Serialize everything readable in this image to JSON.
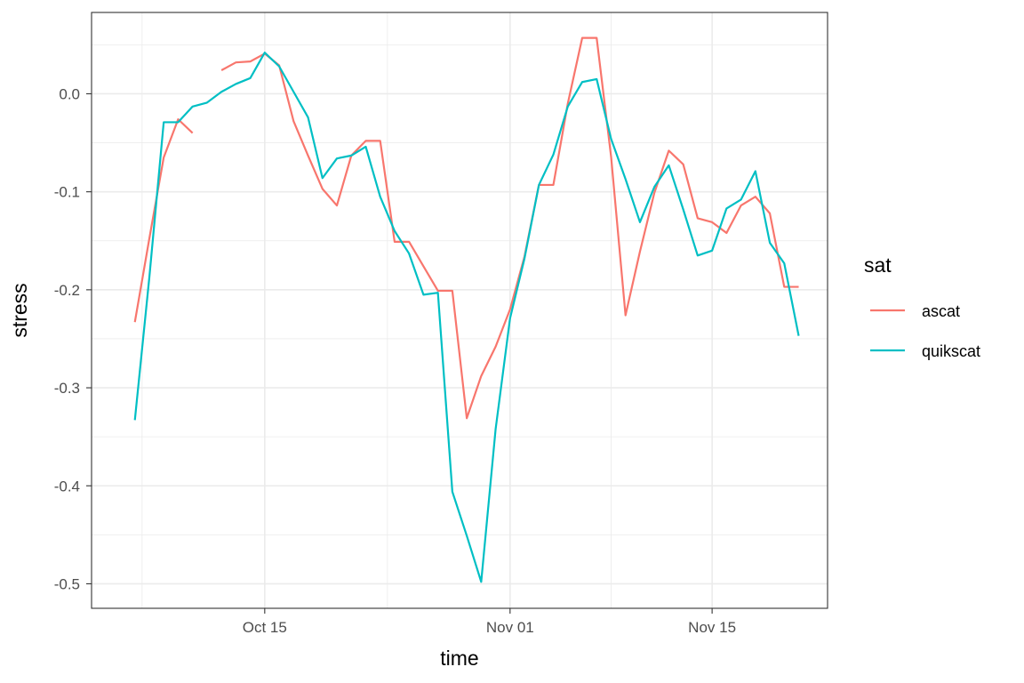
{
  "chart_data": {
    "type": "line",
    "xlabel": "time",
    "ylabel": "stress",
    "x_ticks": [
      {
        "date": "2023-10-15",
        "label": "Oct 15"
      },
      {
        "date": "2023-11-01",
        "label": "Nov 01"
      },
      {
        "date": "2023-11-15",
        "label": "Nov 15"
      }
    ],
    "y_ticks": [
      {
        "value": 0.0,
        "label": "0.0"
      },
      {
        "value": -0.1,
        "label": "-0.1"
      },
      {
        "value": -0.2,
        "label": "-0.2"
      },
      {
        "value": -0.3,
        "label": "-0.3"
      },
      {
        "value": -0.4,
        "label": "-0.4"
      },
      {
        "value": -0.5,
        "label": "-0.5"
      }
    ],
    "xlim": [
      "2023-10-03",
      "2023-11-23"
    ],
    "ylim": [
      -0.525,
      0.083
    ],
    "grid": true,
    "legend": {
      "title": "sat",
      "position": "right"
    },
    "series": [
      {
        "name": "ascat",
        "color": "#F8766D",
        "points": [
          {
            "date": "2023-10-06",
            "y": -0.233
          },
          {
            "date": "2023-10-07",
            "y": -0.148
          },
          {
            "date": "2023-10-08",
            "y": -0.065
          },
          {
            "date": "2023-10-09",
            "y": -0.026
          },
          {
            "date": "2023-10-10",
            "y": -0.04
          },
          {
            "date": "2023-10-11",
            "y": null
          },
          {
            "date": "2023-10-12",
            "y": 0.024
          },
          {
            "date": "2023-10-13",
            "y": 0.032
          },
          {
            "date": "2023-10-14",
            "y": 0.033
          },
          {
            "date": "2023-10-15",
            "y": 0.041
          },
          {
            "date": "2023-10-16",
            "y": 0.029
          },
          {
            "date": "2023-10-17",
            "y": -0.028
          },
          {
            "date": "2023-10-18",
            "y": -0.063
          },
          {
            "date": "2023-10-19",
            "y": -0.097
          },
          {
            "date": "2023-10-20",
            "y": -0.114
          },
          {
            "date": "2023-10-21",
            "y": -0.063
          },
          {
            "date": "2023-10-22",
            "y": -0.048
          },
          {
            "date": "2023-10-23",
            "y": -0.048
          },
          {
            "date": "2023-10-24",
            "y": -0.151
          },
          {
            "date": "2023-10-25",
            "y": -0.151
          },
          {
            "date": "2023-10-26",
            "y": -0.176
          },
          {
            "date": "2023-10-27",
            "y": -0.201
          },
          {
            "date": "2023-10-28",
            "y": -0.201
          },
          {
            "date": "2023-10-29",
            "y": -0.331
          },
          {
            "date": "2023-10-30",
            "y": -0.288
          },
          {
            "date": "2023-10-31",
            "y": -0.258
          },
          {
            "date": "2023-11-01",
            "y": -0.22
          },
          {
            "date": "2023-11-02",
            "y": -0.166
          },
          {
            "date": "2023-11-03",
            "y": -0.093
          },
          {
            "date": "2023-11-04",
            "y": -0.093
          },
          {
            "date": "2023-11-05",
            "y": -0.01
          },
          {
            "date": "2023-11-06",
            "y": 0.057
          },
          {
            "date": "2023-11-07",
            "y": 0.057
          },
          {
            "date": "2023-11-08",
            "y": -0.064
          },
          {
            "date": "2023-11-09",
            "y": -0.226
          },
          {
            "date": "2023-11-10",
            "y": -0.161
          },
          {
            "date": "2023-11-11",
            "y": -0.101
          },
          {
            "date": "2023-11-12",
            "y": -0.058
          },
          {
            "date": "2023-11-13",
            "y": -0.072
          },
          {
            "date": "2023-11-14",
            "y": -0.127
          },
          {
            "date": "2023-11-15",
            "y": -0.131
          },
          {
            "date": "2023-11-16",
            "y": -0.142
          },
          {
            "date": "2023-11-17",
            "y": -0.114
          },
          {
            "date": "2023-11-18",
            "y": -0.105
          },
          {
            "date": "2023-11-19",
            "y": -0.122
          },
          {
            "date": "2023-11-20",
            "y": -0.197
          },
          {
            "date": "2023-11-21",
            "y": -0.197
          }
        ]
      },
      {
        "name": "quikscat",
        "color": "#00BFC4",
        "points": [
          {
            "date": "2023-10-06",
            "y": -0.333
          },
          {
            "date": "2023-10-07",
            "y": -0.188
          },
          {
            "date": "2023-10-08",
            "y": -0.029
          },
          {
            "date": "2023-10-09",
            "y": -0.029
          },
          {
            "date": "2023-10-10",
            "y": -0.013
          },
          {
            "date": "2023-10-11",
            "y": -0.009
          },
          {
            "date": "2023-10-12",
            "y": 0.002
          },
          {
            "date": "2023-10-13",
            "y": 0.01
          },
          {
            "date": "2023-10-14",
            "y": 0.016
          },
          {
            "date": "2023-10-15",
            "y": 0.042
          },
          {
            "date": "2023-10-16",
            "y": 0.028
          },
          {
            "date": "2023-10-17",
            "y": 0.002
          },
          {
            "date": "2023-10-18",
            "y": -0.024
          },
          {
            "date": "2023-10-19",
            "y": -0.086
          },
          {
            "date": "2023-10-20",
            "y": -0.066
          },
          {
            "date": "2023-10-21",
            "y": -0.063
          },
          {
            "date": "2023-10-22",
            "y": -0.054
          },
          {
            "date": "2023-10-23",
            "y": -0.105
          },
          {
            "date": "2023-10-24",
            "y": -0.14
          },
          {
            "date": "2023-10-25",
            "y": -0.163
          },
          {
            "date": "2023-10-26",
            "y": -0.205
          },
          {
            "date": "2023-10-27",
            "y": -0.203
          },
          {
            "date": "2023-10-28",
            "y": -0.406
          },
          {
            "date": "2023-10-29",
            "y": -0.451
          },
          {
            "date": "2023-10-30",
            "y": -0.498
          },
          {
            "date": "2023-10-31",
            "y": -0.342
          },
          {
            "date": "2023-11-01",
            "y": -0.229
          },
          {
            "date": "2023-11-02",
            "y": -0.168
          },
          {
            "date": "2023-11-03",
            "y": -0.093
          },
          {
            "date": "2023-11-04",
            "y": -0.062
          },
          {
            "date": "2023-11-05",
            "y": -0.013
          },
          {
            "date": "2023-11-06",
            "y": 0.012
          },
          {
            "date": "2023-11-07",
            "y": 0.015
          },
          {
            "date": "2023-11-08",
            "y": -0.046
          },
          {
            "date": "2023-11-09",
            "y": -0.087
          },
          {
            "date": "2023-11-10",
            "y": -0.131
          },
          {
            "date": "2023-11-11",
            "y": -0.095
          },
          {
            "date": "2023-11-12",
            "y": -0.073
          },
          {
            "date": "2023-11-13",
            "y": -0.118
          },
          {
            "date": "2023-11-14",
            "y": -0.165
          },
          {
            "date": "2023-11-15",
            "y": -0.16
          },
          {
            "date": "2023-11-16",
            "y": -0.117
          },
          {
            "date": "2023-11-17",
            "y": -0.108
          },
          {
            "date": "2023-11-18",
            "y": -0.079
          },
          {
            "date": "2023-11-19",
            "y": -0.152
          },
          {
            "date": "2023-11-20",
            "y": -0.173
          },
          {
            "date": "2023-11-21",
            "y": -0.247
          }
        ]
      }
    ]
  }
}
